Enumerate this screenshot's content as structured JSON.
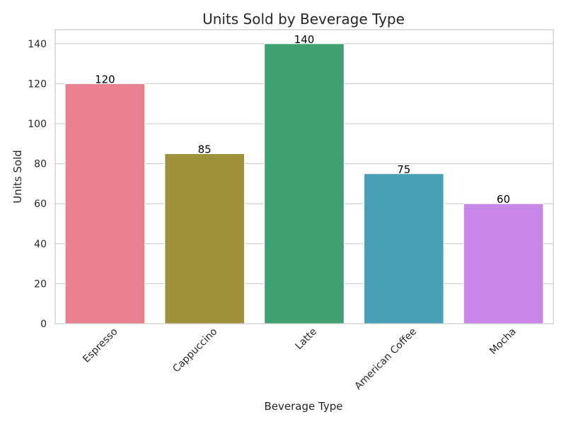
{
  "chart_data": {
    "type": "bar",
    "title": "Units Sold by Beverage Type",
    "xlabel": "Beverage Type",
    "ylabel": "Units Sold",
    "categories": [
      "Espresso",
      "Cappuccino",
      "Latte",
      "American Coffee",
      "Mocha"
    ],
    "values": [
      120,
      85,
      140,
      75,
      60
    ],
    "colors": [
      "#e8808f",
      "#a0913d",
      "#40a072",
      "#47a0b5",
      "#c887e6"
    ],
    "ylim": [
      0,
      147
    ],
    "yticks": [
      0,
      20,
      40,
      60,
      80,
      100,
      120,
      140
    ],
    "grid": "horizontal",
    "data_labels": [
      "120",
      "85",
      "140",
      "75",
      "60"
    ],
    "grid_color": "#cccccc",
    "frame_color": "#cccccc"
  }
}
